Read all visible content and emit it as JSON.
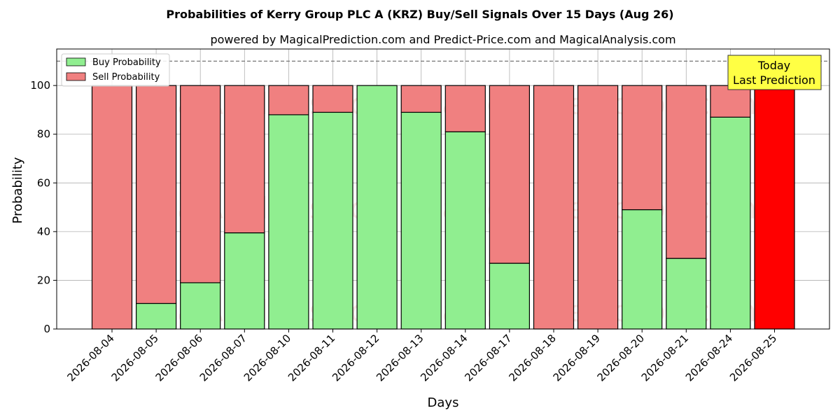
{
  "chart_data": {
    "type": "bar",
    "stacked": true,
    "title": "Probabilities of Kerry Group PLC A (KRZ) Buy/Sell Signals Over 15 Days (Aug 26)",
    "subtitle": "powered by MagicalPrediction.com and Predict-Price.com and MagicalAnalysis.com",
    "xlabel": "Days",
    "ylabel": "Probability",
    "ylim": [
      0,
      115
    ],
    "yticks": [
      0,
      20,
      40,
      60,
      80,
      100
    ],
    "grid": true,
    "legend_position": "top-left",
    "reference_line": 110,
    "categories": [
      "2026-08-04",
      "2026-08-05",
      "2026-08-06",
      "2026-08-07",
      "2026-08-10",
      "2026-08-11",
      "2026-08-12",
      "2026-08-13",
      "2026-08-14",
      "2026-08-17",
      "2026-08-18",
      "2026-08-19",
      "2026-08-20",
      "2026-08-21",
      "2026-08-24",
      "2026-08-25"
    ],
    "series": [
      {
        "name": "Buy Probability",
        "color": "#90ee90",
        "values": [
          0,
          10.5,
          19,
          39.5,
          88,
          89,
          100,
          89,
          81,
          27,
          0,
          0,
          49,
          29,
          87,
          0
        ]
      },
      {
        "name": "Sell Probability",
        "color": "#f08080",
        "values": [
          100,
          89.5,
          81,
          60.5,
          12,
          11,
          0,
          11,
          19,
          73,
          100,
          100,
          51,
          71,
          13,
          100
        ]
      }
    ],
    "highlight": {
      "category": "2026-08-25",
      "color": "#ff0000"
    },
    "annotation": {
      "line1": "Today",
      "line2": "Last Prediction",
      "background": "#ffff44"
    },
    "watermarks": [
      "MagicalAnalysis.com",
      "Magical Prediction.com"
    ]
  }
}
